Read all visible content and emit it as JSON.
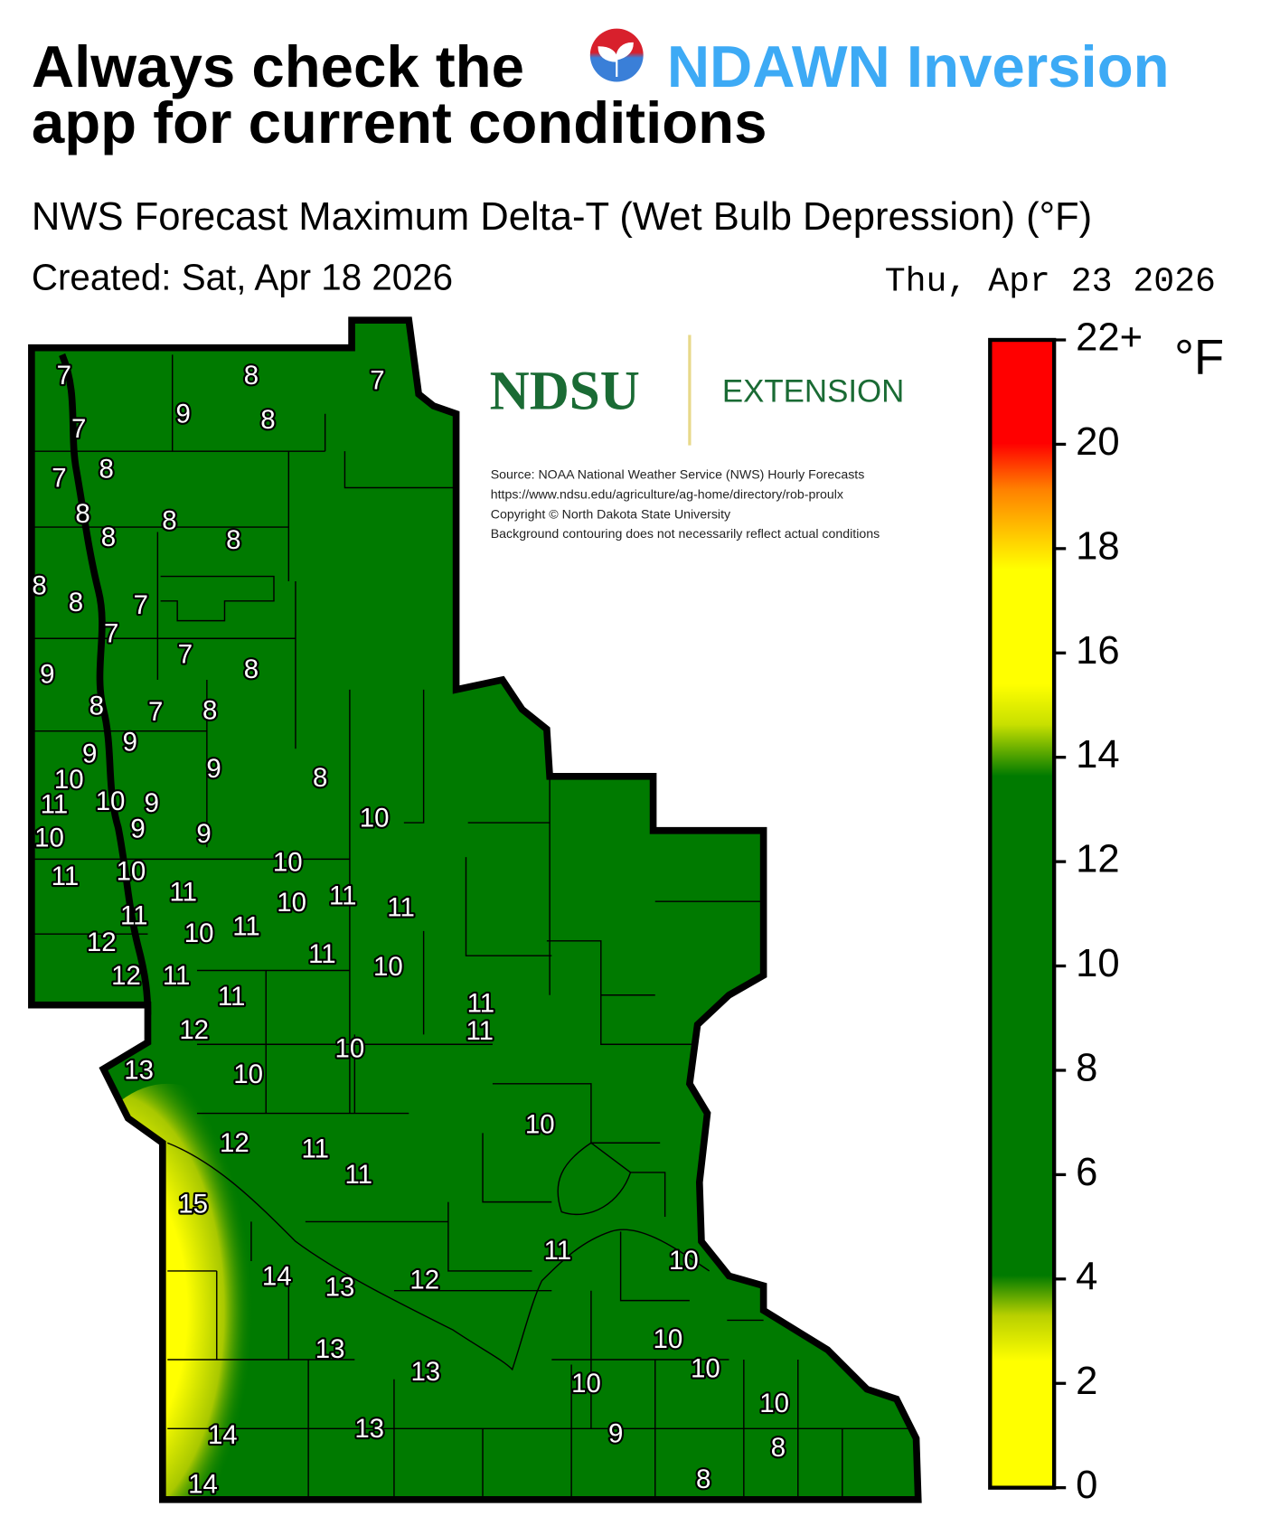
{
  "header": {
    "title_line1": "Always check the",
    "app_name": "NDAWN Inversion",
    "title_line2": "app for current conditions",
    "subtitle": "NWS Forecast Maximum Delta-T (Wet Bulb Depression) (°F)",
    "created": "Created: Sat, Apr 18 2026",
    "forecast_date": "Thu, Apr 23 2026"
  },
  "logo": {
    "name": "NDSU",
    "unit": "EXTENSION"
  },
  "source_lines": [
    "Source: NOAA National Weather Service (NWS) Hourly Forecasts",
    "https://www.ndsu.edu/agriculture/ag-home/directory/rob-proulx",
    "Copyright © North Dakota State University",
    "Background contouring does not necessarily reflect actual conditions"
  ],
  "colorbar": {
    "unit": "°F",
    "lim": [
      0,
      22
    ],
    "ticks": [
      0,
      2,
      4,
      6,
      8,
      10,
      12,
      14,
      16,
      18,
      20,
      {
        "value": 22,
        "label": "22+"
      }
    ]
  },
  "map": {
    "labels": [
      7,
      8,
      7,
      9,
      8,
      7,
      7,
      8,
      8,
      8,
      8,
      8,
      8,
      8,
      7,
      7,
      7,
      8,
      9,
      8,
      7,
      8,
      9,
      9,
      9,
      8,
      10,
      11,
      10,
      9,
      10,
      9,
      10,
      9,
      10,
      11,
      10,
      11,
      10,
      11,
      11,
      11,
      10,
      11,
      12,
      11,
      10,
      12,
      11,
      11,
      11,
      11,
      12,
      10,
      13,
      10,
      10,
      12,
      11,
      11,
      15,
      11,
      10,
      14,
      13,
      12,
      10,
      13,
      10,
      13,
      10,
      10,
      13,
      14,
      9,
      8,
      14,
      8
    ]
  }
}
